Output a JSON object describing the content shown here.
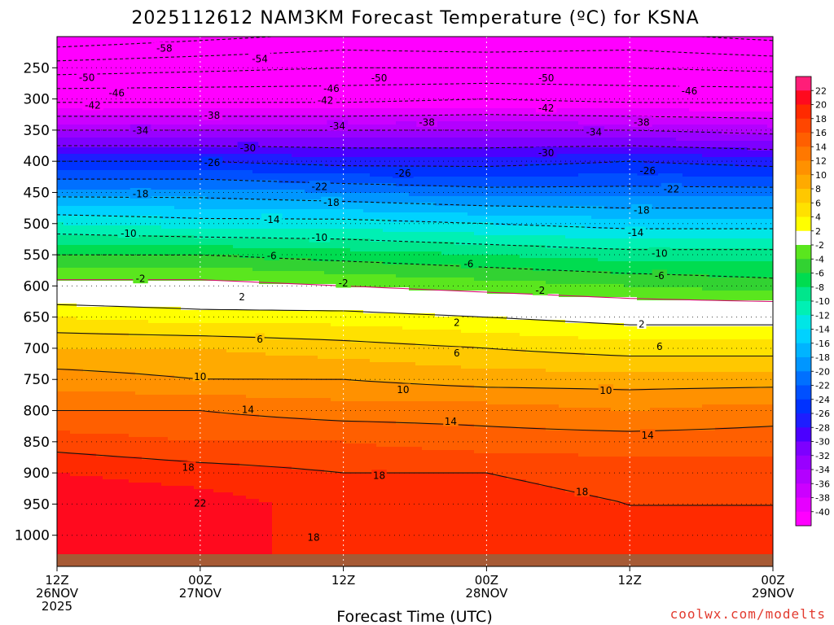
{
  "chart_data": {
    "type": "heatmap",
    "title": "2025112612 NAM3KM Forecast Temperature (ºC) for KSNA",
    "xlabel": "Forecast Time (UTC)",
    "ylabel": "Pressure (hPa)",
    "y_ticks": [
      250,
      300,
      350,
      400,
      450,
      500,
      550,
      600,
      650,
      700,
      750,
      800,
      850,
      900,
      950,
      1000
    ],
    "ylim": [
      1050,
      200
    ],
    "x_ticks": [
      {
        "h": 0,
        "line1": "12Z",
        "line2": "26NOV",
        "line3": "2025"
      },
      {
        "h": 12,
        "line1": "00Z",
        "line2": "27NOV",
        "line3": ""
      },
      {
        "h": 24,
        "line1": "12Z",
        "line2": "",
        "line3": ""
      },
      {
        "h": 36,
        "line1": "00Z",
        "line2": "28NOV",
        "line3": ""
      },
      {
        "h": 48,
        "line1": "12Z",
        "line2": "",
        "line3": ""
      },
      {
        "h": 60,
        "line1": "00Z",
        "line2": "29NOV",
        "line3": ""
      }
    ],
    "xlim": [
      0,
      60
    ],
    "color_levels": [
      -40,
      -38,
      -36,
      -34,
      -32,
      -30,
      -28,
      -26,
      -24,
      -22,
      -20,
      -18,
      -16,
      -14,
      -12,
      -10,
      -8,
      -6,
      -4,
      -2,
      2,
      4,
      6,
      8,
      10,
      12,
      14,
      16,
      18,
      20,
      22
    ],
    "colors": [
      "#ff00ff",
      "#e600ff",
      "#cc00ff",
      "#b300ff",
      "#9900ff",
      "#7d00ff",
      "#4b00ff",
      "#1e1eff",
      "#0032ff",
      "#0050ff",
      "#0070ff",
      "#0096ff",
      "#00b4ff",
      "#00d2ff",
      "#00e6e6",
      "#00f0b4",
      "#00e68c",
      "#00dc50",
      "#32d232",
      "#5ae61e",
      "#ffffff",
      "#ffff00",
      "#ffe100",
      "#ffc800",
      "#ffaa00",
      "#ff9100",
      "#ff7800",
      "#ff5f00",
      "#ff4600",
      "#ff2a00",
      "#ff0a1e",
      "#ff1e78"
    ],
    "series": [
      {
        "name": "T 250 hPa",
        "pressure": 250,
        "x": [
          0,
          12,
          24,
          36,
          48,
          60
        ],
        "values": [
          -52,
          -51,
          -50,
          -50,
          -50,
          -51
        ]
      },
      {
        "name": "T 300 hPa",
        "pressure": 300,
        "x": [
          0,
          12,
          24,
          36,
          48,
          60
        ],
        "values": [
          -43,
          -43,
          -43,
          -42,
          -43,
          -43
        ]
      },
      {
        "name": "T 350 hPa",
        "pressure": 350,
        "x": [
          0,
          12,
          24,
          36,
          48,
          60
        ],
        "values": [
          -34,
          -34,
          -34,
          -34,
          -34,
          -35
        ]
      },
      {
        "name": "T 400 hPa",
        "pressure": 400,
        "x": [
          0,
          12,
          24,
          36,
          48,
          60
        ],
        "values": [
          -26,
          -26,
          -27,
          -27,
          -26,
          -27
        ]
      },
      {
        "name": "T 450 hPa",
        "pressure": 450,
        "x": [
          0,
          12,
          24,
          36,
          48,
          60
        ],
        "values": [
          -19,
          -19,
          -20,
          -21,
          -21,
          -21
        ]
      },
      {
        "name": "T 500 hPa",
        "pressure": 500,
        "x": [
          0,
          12,
          24,
          36,
          48,
          60
        ],
        "values": [
          -12,
          -13,
          -13,
          -14,
          -15,
          -15
        ]
      },
      {
        "name": "T 550 hPa",
        "pressure": 550,
        "x": [
          0,
          12,
          24,
          36,
          48,
          60
        ],
        "values": [
          -6,
          -6,
          -7,
          -8,
          -9,
          -9
        ]
      },
      {
        "name": "T 600 hPa",
        "pressure": 600,
        "x": [
          0,
          12,
          24,
          36,
          48,
          60
        ],
        "values": [
          -1,
          -1,
          -2,
          -3,
          -4,
          -5
        ]
      },
      {
        "name": "T 650 hPa",
        "pressure": 650,
        "x": [
          0,
          12,
          24,
          36,
          48,
          60
        ],
        "values": [
          4,
          3,
          3,
          2,
          1,
          1
        ]
      },
      {
        "name": "T 700 hPa",
        "pressure": 700,
        "x": [
          0,
          12,
          24,
          36,
          48,
          60
        ],
        "values": [
          8,
          8,
          7,
          6,
          5,
          5
        ]
      },
      {
        "name": "T 750 hPa",
        "pressure": 750,
        "x": [
          0,
          12,
          24,
          36,
          48,
          60
        ],
        "values": [
          11,
          10,
          10,
          9,
          9,
          9
        ]
      },
      {
        "name": "T 800 hPa",
        "pressure": 800,
        "x": [
          0,
          12,
          24,
          36,
          48,
          60
        ],
        "values": [
          14,
          14,
          13,
          13,
          12,
          13
        ]
      },
      {
        "name": "T 850 hPa",
        "pressure": 850,
        "x": [
          0,
          12,
          24,
          36,
          48,
          60
        ],
        "values": [
          17,
          16,
          16,
          15,
          15,
          15
        ]
      },
      {
        "name": "T 900 hPa",
        "pressure": 900,
        "x": [
          0,
          12,
          24,
          36,
          48,
          60
        ],
        "values": [
          20,
          19,
          18,
          18,
          17,
          17
        ]
      },
      {
        "name": "T 950 hPa",
        "pressure": 950,
        "x": [
          0,
          12,
          24,
          36,
          48,
          60
        ],
        "values": [
          22,
          21,
          19,
          19,
          18,
          18
        ]
      },
      {
        "name": "T 1000 hPa",
        "pressure": 1000,
        "x": [
          0,
          12,
          24,
          36,
          48,
          60
        ],
        "values": [
          22,
          21,
          19,
          19,
          18,
          18
        ]
      }
    ],
    "contour_labels": [
      {
        "text": "-58",
        "h": 9,
        "p": 218
      },
      {
        "text": "-54",
        "h": 17,
        "p": 235
      },
      {
        "text": "-50",
        "h": 2.5,
        "p": 265
      },
      {
        "text": "-50",
        "h": 27,
        "p": 266
      },
      {
        "text": "-50",
        "h": 41,
        "p": 266
      },
      {
        "text": "-46",
        "h": 5,
        "p": 290
      },
      {
        "text": "-46",
        "h": 23,
        "p": 283
      },
      {
        "text": "-46",
        "h": 53,
        "p": 287
      },
      {
        "text": "-42",
        "h": 3,
        "p": 310
      },
      {
        "text": "-42",
        "h": 22.5,
        "p": 302
      },
      {
        "text": "-42",
        "h": 41,
        "p": 314
      },
      {
        "text": "-38",
        "h": 13,
        "p": 326
      },
      {
        "text": "-38",
        "h": 31,
        "p": 337
      },
      {
        "text": "-38",
        "h": 49,
        "p": 337
      },
      {
        "text": "-34",
        "h": 7,
        "p": 350
      },
      {
        "text": "-34",
        "h": 23.5,
        "p": 343
      },
      {
        "text": "-34",
        "h": 45,
        "p": 353
      },
      {
        "text": "-30",
        "h": 16,
        "p": 378
      },
      {
        "text": "-30",
        "h": 41,
        "p": 386
      },
      {
        "text": "-26",
        "h": 13,
        "p": 402
      },
      {
        "text": "-26",
        "h": 29,
        "p": 419
      },
      {
        "text": "-26",
        "h": 49.5,
        "p": 415
      },
      {
        "text": "-22",
        "h": 22,
        "p": 440
      },
      {
        "text": "-22",
        "h": 51.5,
        "p": 444
      },
      {
        "text": "-18",
        "h": 7,
        "p": 452
      },
      {
        "text": "-18",
        "h": 23,
        "p": 466
      },
      {
        "text": "-18",
        "h": 49,
        "p": 478
      },
      {
        "text": "-14",
        "h": 18,
        "p": 493
      },
      {
        "text": "-14",
        "h": 48.5,
        "p": 514
      },
      {
        "text": "-10",
        "h": 6,
        "p": 515
      },
      {
        "text": "-10",
        "h": 22,
        "p": 522
      },
      {
        "text": "-10",
        "h": 50.5,
        "p": 547
      },
      {
        "text": "-6",
        "h": 18,
        "p": 551
      },
      {
        "text": "-6",
        "h": 34.5,
        "p": 564
      },
      {
        "text": "-6",
        "h": 50.5,
        "p": 583
      },
      {
        "text": "-2",
        "h": 7,
        "p": 588
      },
      {
        "text": "-2",
        "h": 24,
        "p": 595
      },
      {
        "text": "-2",
        "h": 40.5,
        "p": 607
      },
      {
        "text": "2",
        "h": 15.5,
        "p": 617
      },
      {
        "text": "2",
        "h": 33.5,
        "p": 658
      },
      {
        "text": "2",
        "h": 49,
        "p": 661
      },
      {
        "text": "6",
        "h": 17,
        "p": 685
      },
      {
        "text": "6",
        "h": 33.5,
        "p": 707
      },
      {
        "text": "6",
        "h": 50.5,
        "p": 697
      },
      {
        "text": "10",
        "h": 12,
        "p": 745
      },
      {
        "text": "10",
        "h": 29,
        "p": 766
      },
      {
        "text": "10",
        "h": 46,
        "p": 767
      },
      {
        "text": "14",
        "h": 16,
        "p": 798
      },
      {
        "text": "14",
        "h": 33,
        "p": 817
      },
      {
        "text": "14",
        "h": 49.5,
        "p": 839
      },
      {
        "text": "18",
        "h": 11,
        "p": 891
      },
      {
        "text": "18",
        "h": 27,
        "p": 904
      },
      {
        "text": "18",
        "h": 44,
        "p": 930
      },
      {
        "text": "22",
        "h": 12,
        "p": 948
      },
      {
        "text": "18",
        "h": 21.5,
        "p": 1003
      }
    ],
    "credit": "coolwx.com/modelts"
  }
}
